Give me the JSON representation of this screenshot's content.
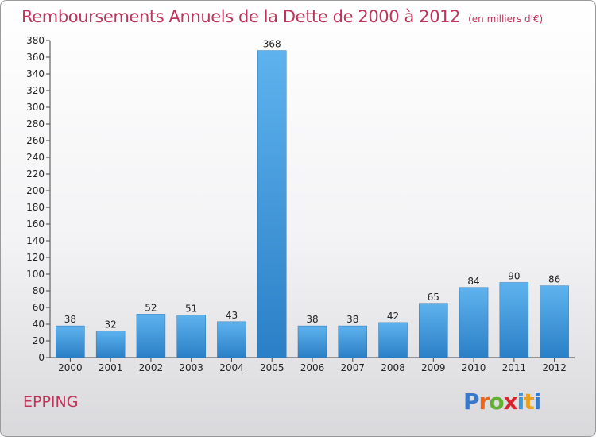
{
  "header": {
    "title": "Remboursements Annuels de la Dette de 2000 à 2012",
    "unit": "(en milliers d'€)"
  },
  "footer": {
    "commune": "EPPING",
    "logo_letters": [
      "P",
      "r",
      "o",
      "x",
      "i",
      "t",
      "i"
    ],
    "logo_colors": [
      "#3a78c8",
      "#e8681f",
      "#62b030",
      "#d8242a",
      "#3a9ad8",
      "#e8a020",
      "#3a78c8"
    ]
  },
  "chart_data": {
    "type": "bar",
    "title": "Remboursements Annuels de la Dette de 2000 à 2012",
    "subtitle": "(en milliers d'€)",
    "xlabel": "",
    "ylabel": "",
    "categories": [
      "2000",
      "2001",
      "2002",
      "2003",
      "2004",
      "2005",
      "2006",
      "2007",
      "2008",
      "2009",
      "2010",
      "2011",
      "2012"
    ],
    "values": [
      38,
      32,
      52,
      51,
      43,
      368,
      38,
      38,
      42,
      65,
      84,
      90,
      86
    ],
    "ylim": [
      0,
      380
    ],
    "ytick_step": 20,
    "grid": false,
    "bar_color": "#3f98dc",
    "legend": "none"
  }
}
